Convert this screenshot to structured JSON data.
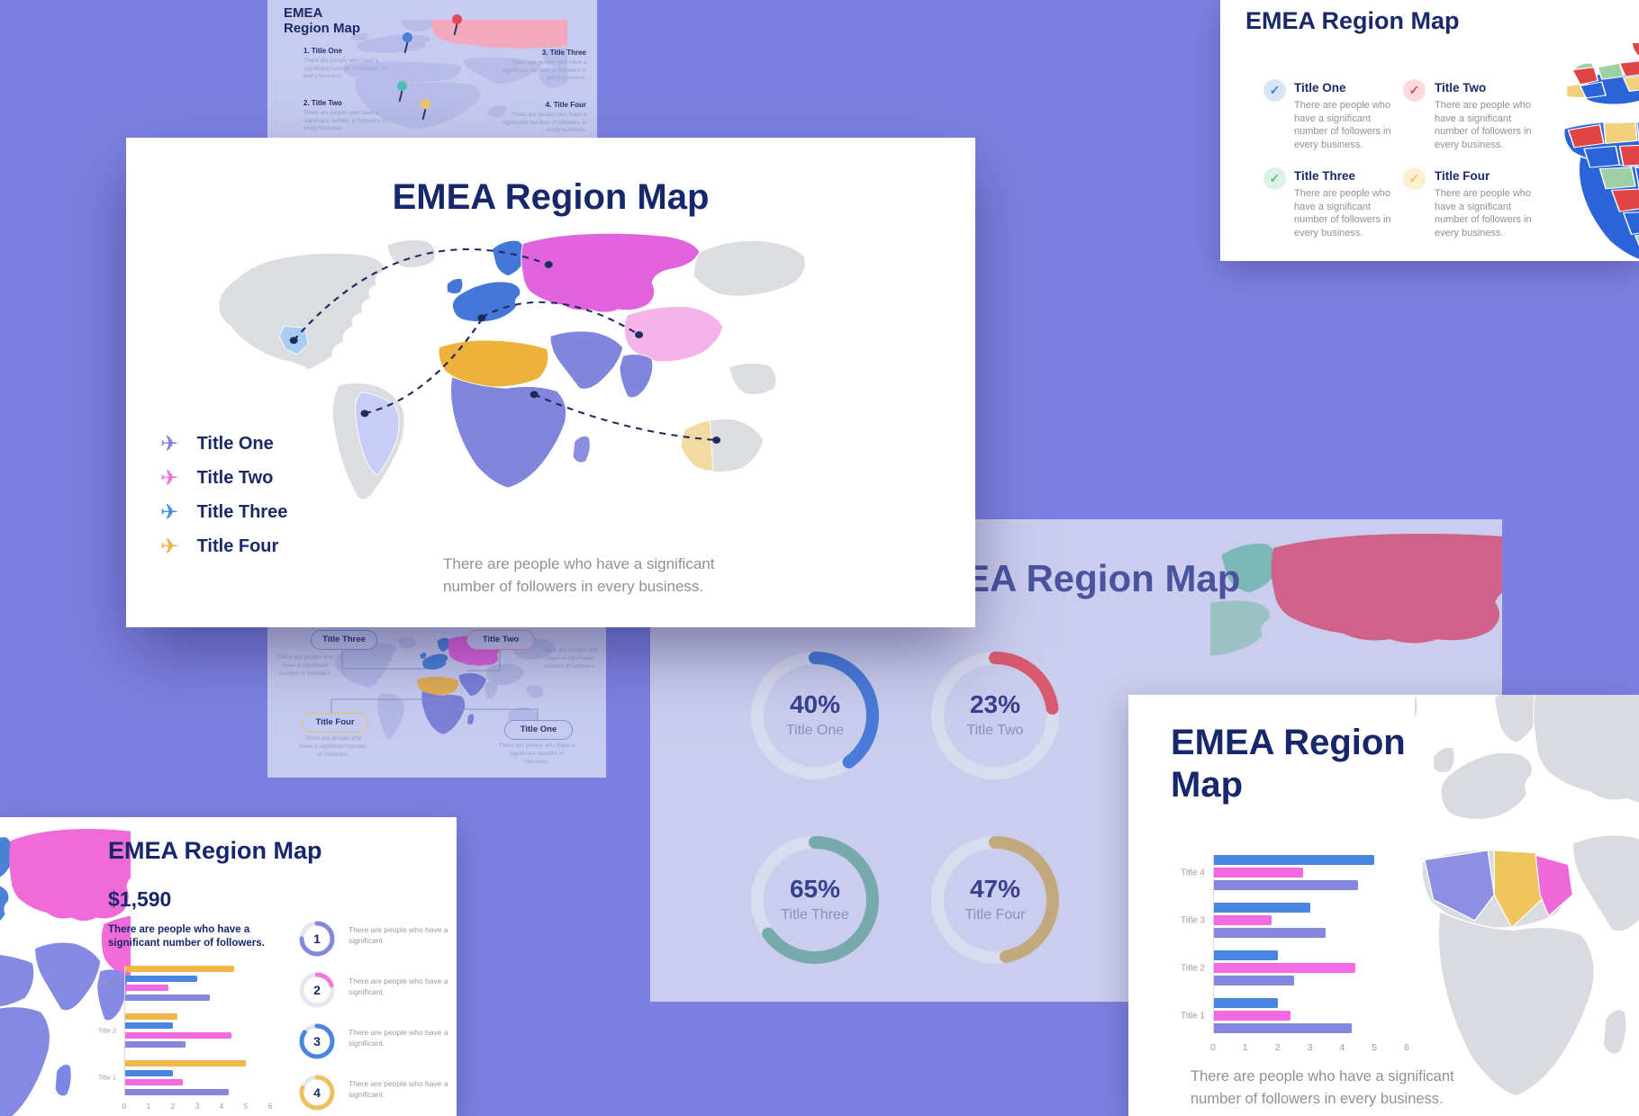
{
  "palette": {
    "background": "#7d80e0",
    "slide_lavender": "#c8cbf0",
    "navy_text": "#1b2a66",
    "gray_body_text": "#8f9196",
    "muted_purple_text": "#9aa0cc"
  },
  "slide_top_left": {
    "title_line1": "EMEA",
    "title_line2": "Region Map",
    "items": [
      {
        "label": "1. Title One",
        "body": "There are people who have a significant number of followers in every business."
      },
      {
        "label": "2. Title Two",
        "body": "There are people who have a significant number of followers in every business."
      },
      {
        "label": "3. Title Three",
        "body": "There are people who have a significant number of followers in every business."
      },
      {
        "label": "4. Title Four",
        "body": "There are people who have a significant number of followers in every business."
      }
    ],
    "pin_colors": [
      "#4a7fd8",
      "#e0485c",
      "#52bfb7",
      "#e8c86a"
    ]
  },
  "slide_top_right": {
    "title": "EMEA Region Map",
    "items": [
      {
        "label": "Title One",
        "check_color": "#3f7fd9",
        "check_bg": "#d6e6f8",
        "check": "✓",
        "body": "There are people who have a significant number of followers in every business."
      },
      {
        "label": "Title Two",
        "check_color": "#e04b58",
        "check_bg": "#fbdadd",
        "check": "✓",
        "body": "There are people who have a significant number of followers in every business."
      },
      {
        "label": "Title Three",
        "check_color": "#5fbf8a",
        "check_bg": "#ddf2e6",
        "check": "✓",
        "body": "There are people who have a significant number of followers in every business."
      },
      {
        "label": "Title Four",
        "check_color": "#f0c05c",
        "check_bg": "#fdf0d2",
        "check": "✓",
        "body": "There are people who have a significant number of followers in every business."
      }
    ]
  },
  "slide_main": {
    "title": "EMEA Region Map",
    "legend": [
      {
        "label": "Title One",
        "color": "#7d80d8",
        "icon": "✈"
      },
      {
        "label": "Title Two",
        "color": "#ee6fd8",
        "icon": "✈"
      },
      {
        "label": "Title Three",
        "color": "#4a8ae8",
        "icon": "✈"
      },
      {
        "label": "Title Four",
        "color": "#eeb33c",
        "icon": "✈"
      }
    ],
    "description": "There are people who have a significant number of followers in every business."
  },
  "slide_callouts": {
    "pills": [
      {
        "label": "Title Three",
        "color": "#6f9fd8",
        "body": "There are people who have a significant number of followers."
      },
      {
        "label": "Title Two",
        "color": "#e88ab8",
        "body": "There are people who have a significant number of followers."
      },
      {
        "label": "Title Four",
        "color": "#e6c06a",
        "body": "There are people who have a significant number of followers."
      },
      {
        "label": "Title One",
        "color": "#8a8ee0",
        "body": "There are people who have a significant number of followers."
      }
    ]
  },
  "slide_donuts": {
    "title": "EMEA Region Map",
    "chart_data": {
      "type": "pie",
      "subtype": "donut-gauges",
      "items": [
        {
          "value": 40,
          "pct": "40%",
          "label": "Title One",
          "color": "#4a7bd9"
        },
        {
          "value": 23,
          "pct": "23%",
          "label": "Title Two",
          "color": "#d85a70"
        },
        {
          "value": 65,
          "pct": "65%",
          "label": "Title Three",
          "color": "#76aaad"
        },
        {
          "value": 47,
          "pct": "47%",
          "label": "Title Four",
          "color": "#c3a97e"
        }
      ]
    }
  },
  "slide_bars_right": {
    "title_line1": "EMEA Region",
    "title_line2": "Map",
    "description": "There are people who have a significant number of followers in every business.",
    "chart_data": {
      "type": "bar",
      "orientation": "horizontal",
      "categories": [
        "Title 4",
        "Title 3",
        "Title 2",
        "Title 1"
      ],
      "series": [
        {
          "name": "blue",
          "color": "#4a86e0",
          "values": [
            5.0,
            3.0,
            2.0,
            2.0
          ]
        },
        {
          "name": "pink",
          "color": "#f36ae2",
          "values": [
            2.8,
            1.8,
            4.4,
            2.4
          ]
        },
        {
          "name": "purple",
          "color": "#8487dd",
          "values": [
            4.5,
            3.5,
            2.5,
            4.3
          ]
        }
      ],
      "xlim": [
        0,
        6
      ],
      "ticks": [
        0,
        1,
        2,
        3,
        4,
        5,
        6
      ],
      "grid": false
    }
  },
  "slide_price": {
    "title": "EMEA Region Map",
    "price": "$1,590",
    "lead": "There are people who have a significant number of followers.",
    "chart_data": {
      "type": "bar",
      "orientation": "horizontal",
      "categories": [
        "Title 3",
        "Title 2",
        "Title 1"
      ],
      "series": [
        {
          "name": "yellow",
          "color": "#f0b64a",
          "values": [
            4.5,
            2.2,
            5.0
          ]
        },
        {
          "name": "blue",
          "color": "#4a86e0",
          "values": [
            3.0,
            2.0,
            2.0
          ]
        },
        {
          "name": "pink",
          "color": "#f36ae2",
          "values": [
            1.8,
            4.4,
            2.4
          ]
        },
        {
          "name": "purple",
          "color": "#8487dd",
          "values": [
            3.5,
            2.5,
            4.3
          ]
        }
      ],
      "xlim": [
        0,
        6
      ],
      "ticks": [
        0,
        1,
        2,
        3,
        4,
        5,
        6
      ],
      "grid": false
    },
    "list": [
      {
        "num": "1",
        "color": "#8487e0",
        "ring_fraction": 0.75,
        "body": "There are people who have a significant."
      },
      {
        "num": "2",
        "color": "#f07ad8",
        "ring_fraction": 0.2,
        "body": "There are people who have a significant."
      },
      {
        "num": "3",
        "color": "#4a86e0",
        "ring_fraction": 0.85,
        "body": "There are people who have a significant."
      },
      {
        "num": "4",
        "color": "#ecc05c",
        "ring_fraction": 0.8,
        "body": "There are people who have a significant."
      }
    ]
  }
}
